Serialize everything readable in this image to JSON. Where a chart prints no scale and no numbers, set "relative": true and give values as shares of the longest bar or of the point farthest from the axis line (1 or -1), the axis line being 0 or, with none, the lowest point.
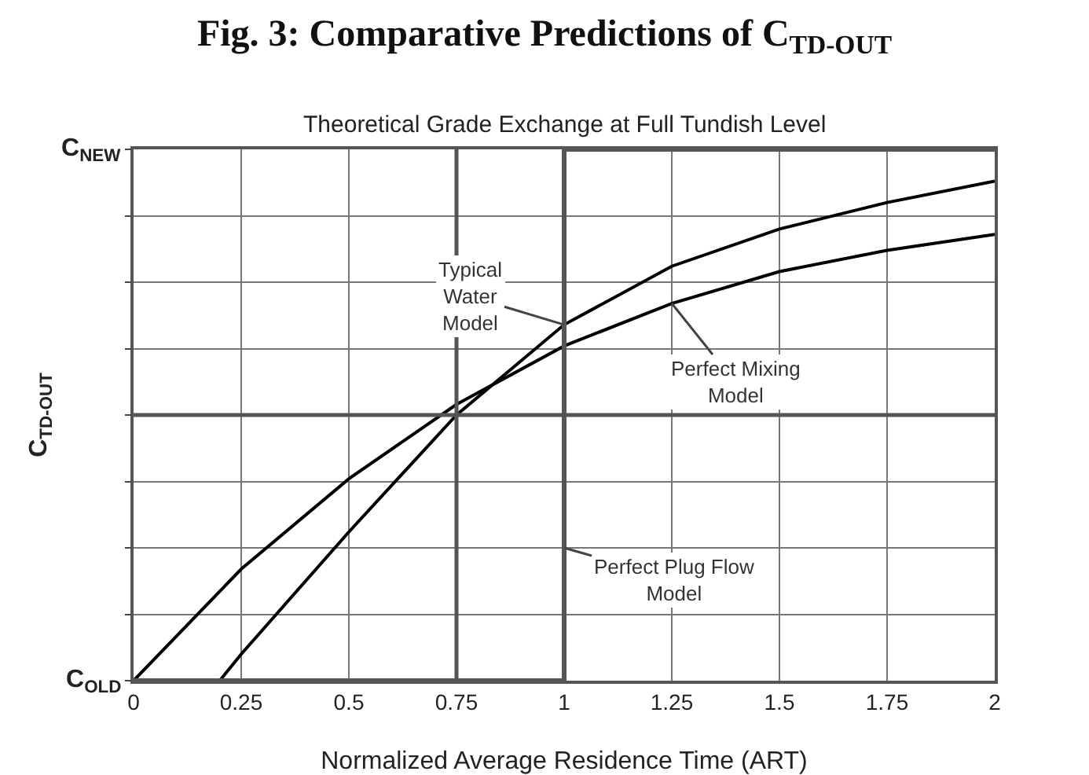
{
  "chart_data": {
    "type": "line",
    "title": "Fig. 3: Comparative Predictions of C$_{TD-OUT}$",
    "subtitle": "Theoretical Grade Exchange at Full Tundish Level",
    "xlabel": "Normalized Average Residence Time (ART)",
    "ylabel": "C$_{TD-OUT}$",
    "xlim": [
      0,
      2
    ],
    "xticks": [
      0,
      0.25,
      0.5,
      0.75,
      1,
      1.25,
      1.5,
      1.75,
      2
    ],
    "relative": true,
    "annotations": [
      "C$_{OLD}$",
      "C$_{NEW}$"
    ],
    "grid": true,
    "legend": false,
    "marker": "none",
    "line_style": "solid",
    "ref_lines": [
      {
        "axis": "x",
        "value": 0.75,
        "color": "#555555"
      },
      {
        "axis": "y",
        "value": 0.5,
        "color": "#555555"
      }
    ],
    "series": [
      {
        "name": "Typical Water Model",
        "color": "#000000",
        "x": [
          0.2,
          0.25,
          0.5,
          0.75,
          1,
          1.25,
          1.5,
          1.75,
          2
        ],
        "values": [
          0,
          0.05,
          0.28,
          0.5,
          0.67,
          0.78,
          0.85,
          0.9,
          0.94
        ]
      },
      {
        "name": "Perfect Mixing Model",
        "color": "#000000",
        "x": [
          0,
          0.25,
          0.5,
          0.75,
          1,
          1.25,
          1.5,
          1.75,
          2
        ],
        "values": [
          0,
          0.21,
          0.38,
          0.52,
          0.63,
          0.71,
          0.77,
          0.81,
          0.84
        ]
      },
      {
        "name": "Perfect Plug Flow Model",
        "type": "step",
        "color": "#555555",
        "x": [
          0,
          1,
          2
        ],
        "values": [
          0,
          1,
          1
        ]
      }
    ]
  }
}
